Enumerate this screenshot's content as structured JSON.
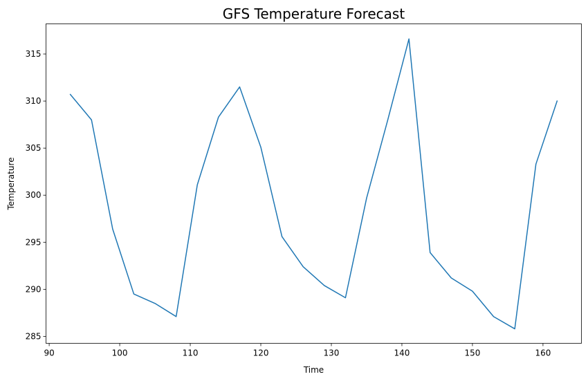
{
  "chart_data": {
    "type": "line",
    "title": "GFS Temperature Forecast",
    "xlabel": "Time",
    "ylabel": "Temperature",
    "xlim": [
      89.55,
      165.45
    ],
    "ylim": [
      284.26,
      318.2
    ],
    "xticks": [
      90,
      100,
      110,
      120,
      130,
      140,
      150,
      160
    ],
    "yticks": [
      285,
      290,
      295,
      300,
      305,
      310,
      315
    ],
    "grid": false,
    "legend": "none",
    "series": [
      {
        "color": "#1f77b4",
        "x": [
          93,
          96,
          99,
          102,
          105,
          108,
          111,
          114,
          117,
          120,
          123,
          126,
          129,
          132,
          135,
          138,
          141,
          144,
          147,
          150,
          153,
          156,
          159,
          162
        ],
        "y": [
          310.7,
          308.0,
          296.4,
          289.5,
          288.5,
          287.1,
          301.1,
          308.3,
          311.5,
          305.1,
          295.6,
          292.4,
          290.4,
          289.1,
          299.7,
          308.0,
          316.6,
          293.9,
          291.2,
          289.8,
          287.1,
          285.8,
          303.3,
          310.0
        ]
      }
    ]
  }
}
